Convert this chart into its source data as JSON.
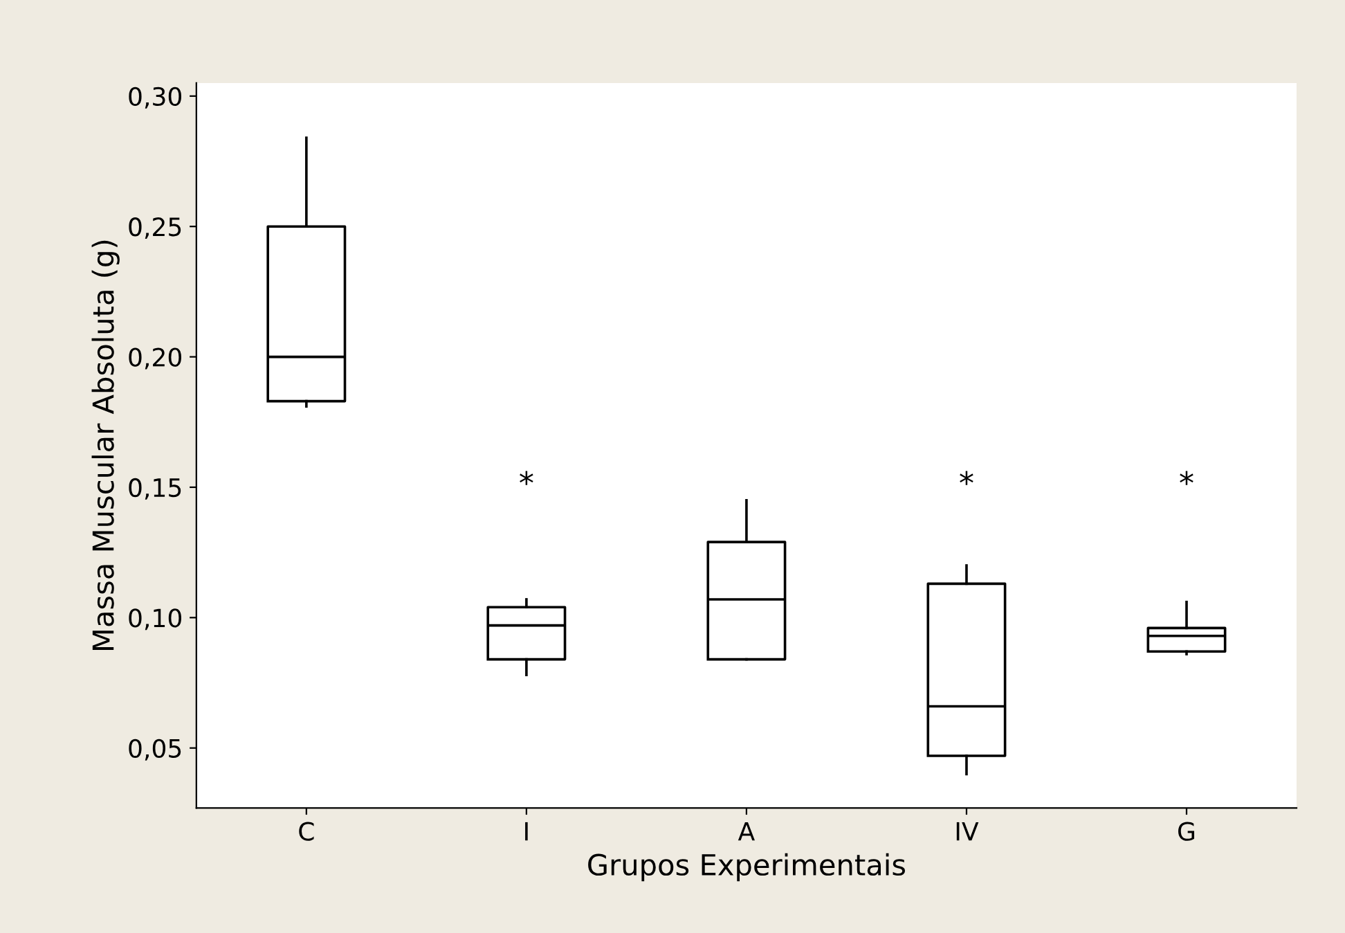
{
  "chart_data": {
    "type": "box",
    "xlabel": "Grupos Experimentais",
    "ylabel": "Massa Muscular Absoluta (g)",
    "categories": [
      "C",
      "I",
      "A",
      "IV",
      "G"
    ],
    "boxes": [
      {
        "low": 0.181,
        "q1": 0.183,
        "median": 0.2,
        "q3": 0.25,
        "high": 0.284
      },
      {
        "low": 0.078,
        "q1": 0.084,
        "median": 0.097,
        "q3": 0.104,
        "high": 0.107
      },
      {
        "low": 0.084,
        "q1": 0.084,
        "median": 0.107,
        "q3": 0.129,
        "high": 0.145
      },
      {
        "low": 0.04,
        "q1": 0.047,
        "median": 0.066,
        "q3": 0.113,
        "high": 0.12
      },
      {
        "low": 0.086,
        "q1": 0.087,
        "median": 0.093,
        "q3": 0.096,
        "high": 0.106
      }
    ],
    "ylim": [
      0.027,
      0.305
    ],
    "yticks": [
      {
        "value": 0.05,
        "label": "0,05"
      },
      {
        "value": 0.1,
        "label": "0,10"
      },
      {
        "value": 0.15,
        "label": "0,15"
      },
      {
        "value": 0.2,
        "label": "0,20"
      },
      {
        "value": 0.25,
        "label": "0,25"
      },
      {
        "value": 0.3,
        "label": "0,30"
      }
    ],
    "annotations": [
      "*",
      "*",
      "*"
    ],
    "grid": false
  }
}
